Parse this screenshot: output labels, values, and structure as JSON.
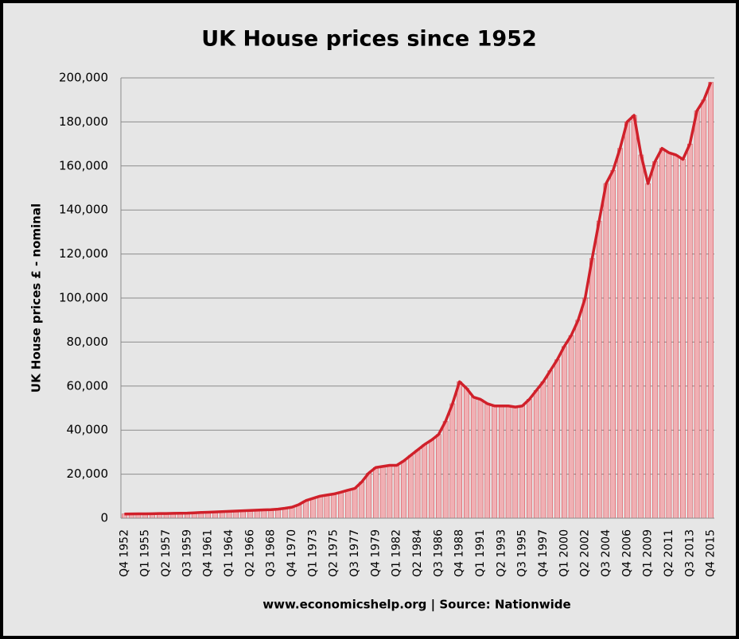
{
  "chart_data": {
    "type": "area",
    "title": "UK House prices since 1952",
    "ylabel": "UK House prices £ - nominal",
    "caption": "www.economicshelp.org | Source: Nationwide",
    "color": "#d0202a",
    "fill_color": "#f0b0b4",
    "grid": true,
    "ylim": [
      0,
      200000
    ],
    "yticks": [
      0,
      {
        "value": 20000,
        "label": "20,000"
      },
      {
        "value": 40000,
        "label": "40,000"
      },
      {
        "value": 60000,
        "label": "60,000"
      },
      {
        "value": 80000,
        "label": "80,000"
      },
      {
        "value": 100000,
        "label": "100,000"
      },
      {
        "value": 120000,
        "label": "120,000"
      },
      {
        "value": 140000,
        "label": "140,000"
      },
      {
        "value": 160000,
        "label": "160,000"
      },
      {
        "value": 180000,
        "label": "180,000"
      },
      {
        "value": 200000,
        "label": "200,000"
      }
    ],
    "categories": [
      "Q4 1952",
      null,
      null,
      "Q1 1955",
      null,
      null,
      "Q2 1957",
      null,
      null,
      "Q3 1959",
      null,
      null,
      "Q4 1961",
      null,
      null,
      "Q1 1964",
      null,
      null,
      "Q2 1966",
      null,
      null,
      "Q3 1968",
      null,
      null,
      "Q4 1970",
      null,
      null,
      "Q1 1973",
      null,
      null,
      "Q2 1975",
      null,
      null,
      "Q3 1977",
      null,
      null,
      "Q4 1979",
      null,
      null,
      "Q1 1982",
      null,
      null,
      "Q2 1984",
      null,
      null,
      "Q3 1986",
      null,
      null,
      "Q4 1988",
      null,
      null,
      "Q1 1991",
      null,
      null,
      "Q2 1993",
      null,
      null,
      "Q3 1995",
      null,
      null,
      "Q4 1997",
      null,
      null,
      "Q1 2000",
      null,
      null,
      "Q2 2002",
      null,
      null,
      "Q3 2004",
      null,
      null,
      "Q4 2006",
      null,
      null,
      "Q1 2009",
      null,
      null,
      "Q2 2011",
      null,
      null,
      "Q3 2013",
      null,
      null,
      "Q4 2015"
    ],
    "values": [
      1900,
      1950,
      2000,
      2000,
      2050,
      2100,
      2100,
      2200,
      2250,
      2300,
      2450,
      2600,
      2700,
      2850,
      3000,
      3100,
      3250,
      3400,
      3500,
      3650,
      3800,
      3900,
      4100,
      4500,
      5000,
      6200,
      8000,
      9000,
      10000,
      10500,
      11000,
      11800,
      12700,
      13500,
      16500,
      20500,
      23000,
      23500,
      24000,
      24000,
      26000,
      28500,
      31000,
      33500,
      35500,
      38000,
      44000,
      52000,
      62000,
      59000,
      55000,
      54000,
      52000,
      51000,
      51000,
      51000,
      50500,
      51000,
      54000,
      58000,
      62000,
      67000,
      72000,
      78000,
      83000,
      90000,
      100000,
      118000,
      135000,
      152000,
      158000,
      168000,
      180000,
      183000,
      165000,
      152000,
      162000,
      168000,
      166000,
      165000,
      163000,
      170000,
      185000,
      190000,
      198000
    ]
  }
}
